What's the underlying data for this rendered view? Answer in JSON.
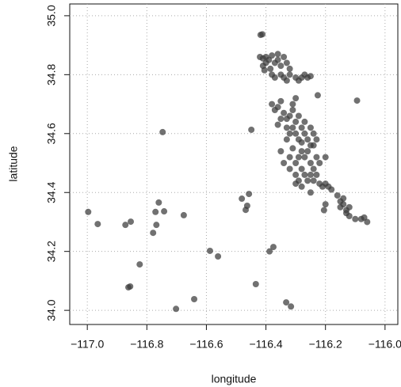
{
  "chart_data": {
    "type": "scatter",
    "x_label": "longitude",
    "y_label": "latitude",
    "color": "#3a3a3a",
    "grid": true,
    "xlim": [
      -117.059,
      -115.957
    ],
    "ylim": [
      33.952,
      35.04
    ],
    "xticks": [
      {
        "value": -117,
        "label": "−117.0"
      },
      {
        "value": -116.8,
        "label": "−116.8"
      },
      {
        "value": -116.6,
        "label": "−116.6"
      },
      {
        "value": -116.4,
        "label": "−116.4"
      },
      {
        "value": -116.2,
        "label": "−116.2"
      },
      {
        "value": -116,
        "label": "−116.0"
      }
    ],
    "yticks": [
      {
        "value": 34,
        "label": "34.0"
      },
      34.2,
      34.4,
      34.6,
      34.8,
      {
        "value": 35,
        "label": "35.0"
      }
    ],
    "x": [
      -116.997,
      -116.965,
      -116.872,
      -116.854,
      -116.747,
      -116.76,
      -116.771,
      -116.742,
      -116.768,
      -116.779,
      -116.676,
      -116.824,
      -116.856,
      -116.862,
      -116.702,
      -116.641,
      -116.588,
      -116.561,
      -116.481,
      -116.457,
      -116.463,
      -116.468,
      -116.449,
      -116.434,
      -116.388,
      -116.375,
      -116.332,
      -116.316,
      -116.094,
      -116.226,
      -116.418,
      -116.412,
      -116.42,
      -116.41,
      -116.4,
      -116.39,
      -116.38,
      -116.4,
      -116.41,
      -116.385,
      -116.37,
      -116.36,
      -116.35,
      -116.34,
      -116.33,
      -116.35,
      -116.34,
      -116.33,
      -116.32,
      -116.3,
      -116.29,
      -116.28,
      -116.27,
      -116.26,
      -116.25,
      -116.36,
      -116.38,
      -116.405,
      -116.32,
      -116.37,
      -116.38,
      -116.37,
      -116.36,
      -116.35,
      -116.34,
      -116.33,
      -116.35,
      -116.31,
      -116.3,
      -116.31,
      -116.32,
      -116.3,
      -116.29,
      -116.28,
      -116.3,
      -116.31,
      -116.32,
      -116.33,
      -116.29,
      -116.28,
      -116.27,
      -116.26,
      -116.25,
      -116.26,
      -116.27,
      -116.28,
      -116.29,
      -116.3,
      -116.31,
      -116.35,
      -116.34,
      -116.32,
      -116.3,
      -116.28,
      -116.27,
      -116.26,
      -116.28,
      -116.25,
      -116.24,
      -116.23,
      -116.24,
      -116.23,
      -116.24,
      -116.25,
      -116.27,
      -116.3,
      -116.29,
      -116.25,
      -116.24,
      -116.22,
      -116.21,
      -116.2,
      -116.19,
      -116.18,
      -116.205,
      -116.2,
      -116.25,
      -116.32,
      -116.33,
      -116.36,
      -116.23,
      -116.2,
      -116.22,
      -116.16,
      -116.15,
      -116.14,
      -116.15,
      -116.13,
      -116.12,
      -116.13,
      -116.1,
      -116.08,
      -116.07,
      -116.06,
      -116.14,
      -116.12
    ],
    "y": [
      34.334,
      34.293,
      34.29,
      34.301,
      34.605,
      34.366,
      34.334,
      34.336,
      34.29,
      34.263,
      34.323,
      34.156,
      34.081,
      34.078,
      34.005,
      34.038,
      34.202,
      34.183,
      34.379,
      34.395,
      34.355,
      34.341,
      34.613,
      34.089,
      34.2,
      34.215,
      34.027,
      34.013,
      34.712,
      34.73,
      34.935,
      34.937,
      34.86,
      34.855,
      34.86,
      34.85,
      34.865,
      34.84,
      34.83,
      34.82,
      34.84,
      34.85,
      34.83,
      34.86,
      34.84,
      34.8,
      34.79,
      34.78,
      34.8,
      34.79,
      34.78,
      34.79,
      34.8,
      34.79,
      34.795,
      34.87,
      34.8,
      34.815,
      34.82,
      34.79,
      34.7,
      34.68,
      34.69,
      34.71,
      34.67,
      34.65,
      34.65,
      34.7,
      34.72,
      34.68,
      34.66,
      34.64,
      34.66,
      34.62,
      34.6,
      34.62,
      34.6,
      34.58,
      34.58,
      34.57,
      34.6,
      34.58,
      34.56,
      34.54,
      34.52,
      34.54,
      34.52,
      34.5,
      34.55,
      34.54,
      34.5,
      34.48,
      34.46,
      34.48,
      34.46,
      34.44,
      34.42,
      34.5,
      34.48,
      34.52,
      34.56,
      34.58,
      34.6,
      34.62,
      34.64,
      34.43,
      34.44,
      34.46,
      34.44,
      34.43,
      34.42,
      34.43,
      34.42,
      34.41,
      34.34,
      34.36,
      34.4,
      34.52,
      34.62,
      34.63,
      34.46,
      34.52,
      34.5,
      34.39,
      34.37,
      34.36,
      34.35,
      34.34,
      34.32,
      34.33,
      34.31,
      34.31,
      34.315,
      34.3,
      34.38,
      34.35
    ]
  }
}
